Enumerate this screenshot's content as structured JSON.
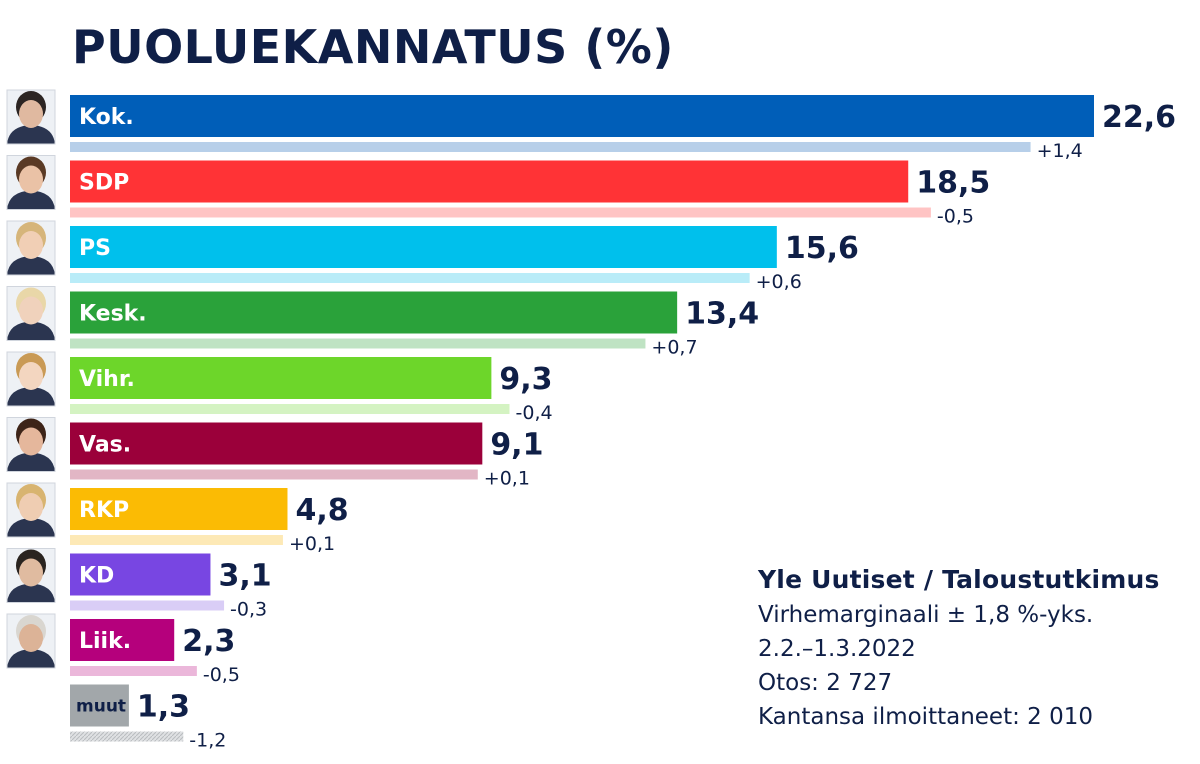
{
  "chart_data": {
    "type": "bar",
    "orientation": "horizontal",
    "title": "PUOLUEKANNATUS (%)",
    "categories": [
      "Kok.",
      "SDP",
      "PS",
      "Kesk.",
      "Vihr.",
      "Vas.",
      "RKP",
      "KD",
      "Liik.",
      "muut"
    ],
    "series": [
      {
        "values": [
          22.6,
          18.5,
          15.6,
          13.4,
          9.3,
          9.1,
          4.8,
          3.1,
          2.3,
          1.3
        ],
        "labels": [
          "22,6",
          "18,5",
          "15,6",
          "13,4",
          "9,3",
          "9,1",
          "4,8",
          "3,1",
          "2,3",
          "1,3"
        ]
      },
      {
        "values": [
          21.2,
          19.0,
          15.0,
          12.7,
          9.7,
          9.0,
          4.7,
          3.4,
          2.8,
          2.5
        ],
        "labels": [
          "+1,4",
          "-0,5",
          "+0,6",
          "+0,7",
          "-0,4",
          "+0,1",
          "+0,1",
          "-0,3",
          "-0,5",
          "-1,2"
        ]
      }
    ],
    "colors": [
      "#005eb8",
      "#ff3336",
      "#00c0ec",
      "#2aa23a",
      "#6dd62a",
      "#9b003a",
      "#fbbb04",
      "#7846e2",
      "#b5007c",
      "#a2a7aa"
    ],
    "prev_colors": [
      "#b7cfe9",
      "#ffc4c4",
      "#b9ecf8",
      "#bfe3c3",
      "#d4f3c2",
      "#e2b6c5",
      "#fde9b6",
      "#d9cdf6",
      "#ebb7da",
      "#d9dbdc"
    ],
    "avatar_skin": [
      "#e0b9a0",
      "#eac2a6",
      "#f1cfb5",
      "#f0d2bc",
      "#f3d6c0",
      "#e5b79c",
      "#efcdb2",
      "#e0bba0",
      "#dcb397",
      ""
    ],
    "avatar_hair": [
      "#2c2523",
      "#5a3a25",
      "#d6b57a",
      "#e9d7a8",
      "#c99a55",
      "#3d2418",
      "#d8b470",
      "#2a2420",
      "#d9d6d0",
      ""
    ],
    "xlim": [
      0,
      22.6
    ],
    "legend": "none",
    "grid": false,
    "source": "Yle Uutiset / Taloustutkimus",
    "notes": [
      "Virhemarginaali ± 1,8 %-yks.",
      "2.2.–1.3.2022",
      "Otos: 2 727",
      "Kantansa ilmoittaneet: 2 010"
    ]
  }
}
